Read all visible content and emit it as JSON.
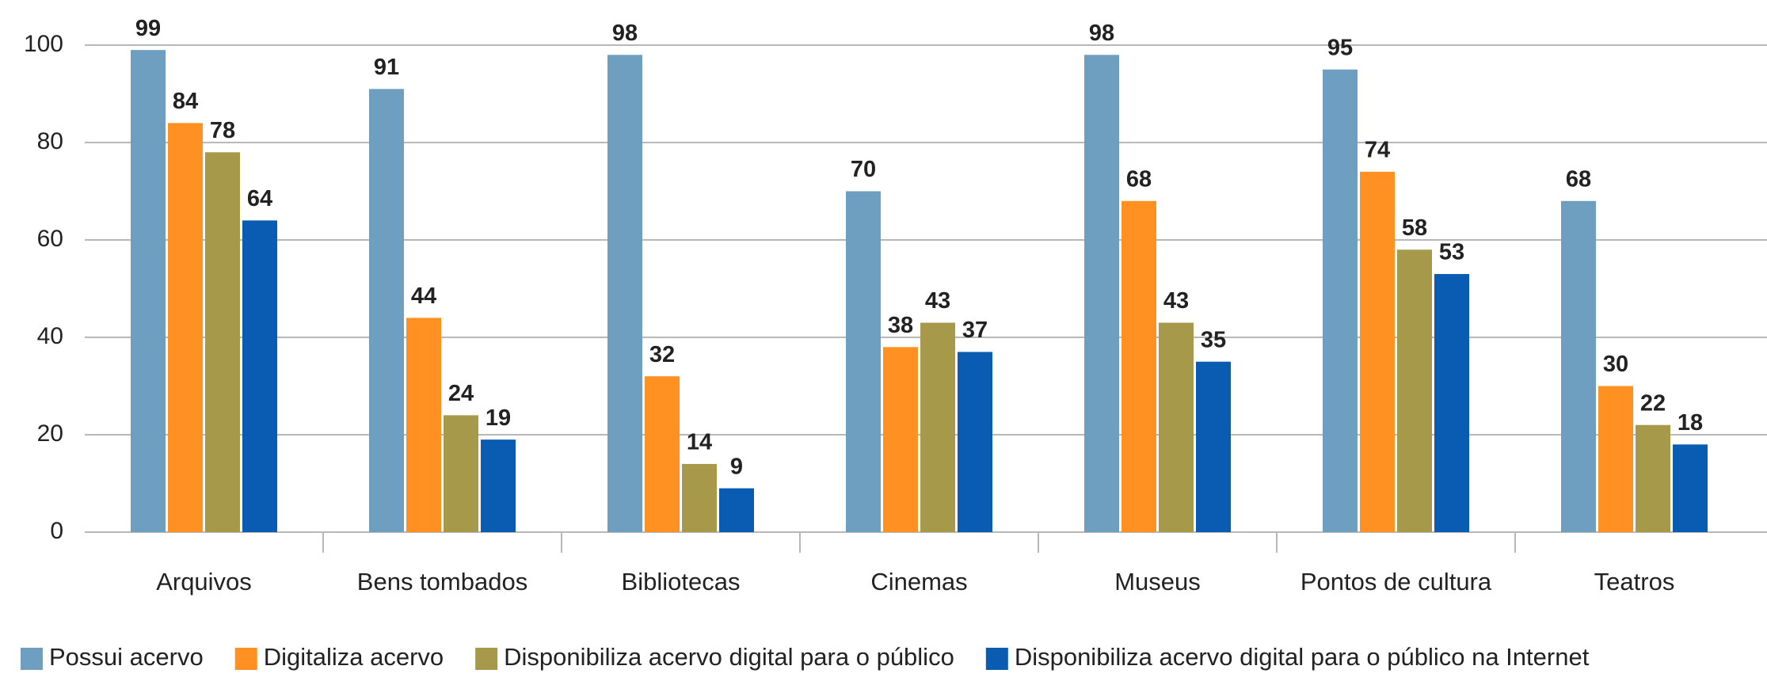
{
  "chart_data": {
    "type": "bar",
    "categories": [
      "Arquivos",
      "Bens tombados",
      "Bibliotecas",
      "Cinemas",
      "Museus",
      "Pontos de cultura",
      "Teatros"
    ],
    "series": [
      {
        "name": "Possui acervo",
        "color": "#6f9fc0",
        "values": [
          99,
          91,
          98,
          70,
          98,
          95,
          68
        ]
      },
      {
        "name": "Digitaliza acervo",
        "color": "#ff9122",
        "values": [
          84,
          44,
          32,
          38,
          68,
          74,
          30
        ]
      },
      {
        "name": "Disponibiliza acervo digital para o público",
        "color": "#a6994a",
        "values": [
          78,
          24,
          14,
          43,
          43,
          58,
          22
        ]
      },
      {
        "name": "Disponibiliza acervo digital para o público na Internet",
        "color": "#0a5bb2",
        "values": [
          64,
          19,
          9,
          37,
          35,
          53,
          18
        ]
      }
    ],
    "ylim": [
      0,
      100
    ],
    "yticks": [
      0,
      20,
      40,
      60,
      80,
      100
    ],
    "grid": true,
    "legend": "bottom"
  }
}
